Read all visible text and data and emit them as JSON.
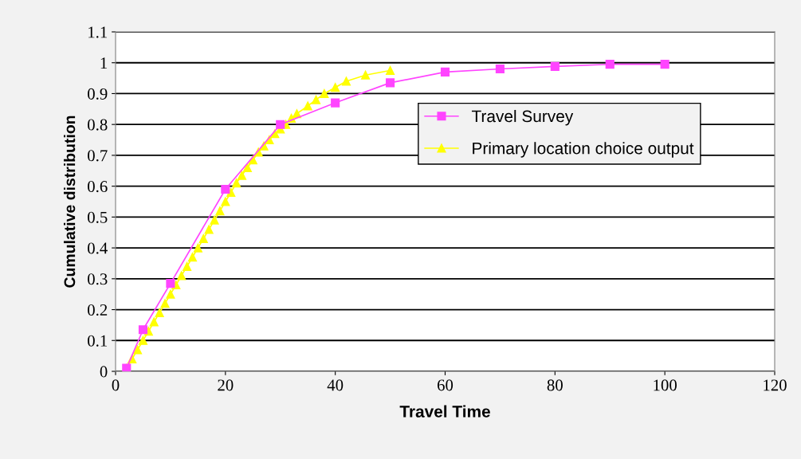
{
  "chart_data": {
    "type": "line",
    "xlabel": "Travel Time",
    "ylabel": "Cumulative distribution",
    "xlim": [
      0,
      120
    ],
    "xticks": [
      0,
      20,
      40,
      60,
      80,
      100,
      120
    ],
    "ylim": [
      0,
      1.1
    ],
    "yticks": [
      0,
      0.1,
      0.2,
      0.3,
      0.4,
      0.5,
      0.6,
      0.7,
      0.8,
      0.9,
      1,
      1.1
    ],
    "grid": "y",
    "legend": "right",
    "series": [
      {
        "name": "Travel Survey",
        "color": "#ff44ff",
        "marker": "square",
        "x": [
          2,
          5,
          10,
          20,
          30,
          40,
          50,
          60,
          70,
          80,
          90,
          100
        ],
        "values": [
          0.01,
          0.135,
          0.285,
          0.59,
          0.8,
          0.87,
          0.935,
          0.97,
          0.98,
          0.988,
          0.995,
          0.995
        ]
      },
      {
        "name": "Primary location choice output",
        "color": "#ffff00",
        "marker": "triangle",
        "x": [
          2,
          3,
          4,
          5,
          6,
          7,
          8,
          9,
          10,
          11,
          12,
          13,
          14,
          15,
          16,
          17,
          18,
          19,
          20,
          21,
          22,
          23,
          24,
          25,
          26,
          27,
          28,
          29,
          30,
          31,
          32,
          33,
          35,
          36.5,
          38,
          40,
          42,
          45.5,
          50
        ],
        "values": [
          0.01,
          0.04,
          0.07,
          0.1,
          0.13,
          0.16,
          0.19,
          0.22,
          0.25,
          0.28,
          0.31,
          0.34,
          0.37,
          0.4,
          0.43,
          0.46,
          0.49,
          0.52,
          0.55,
          0.58,
          0.61,
          0.635,
          0.66,
          0.685,
          0.71,
          0.73,
          0.75,
          0.77,
          0.785,
          0.8,
          0.82,
          0.835,
          0.86,
          0.88,
          0.9,
          0.92,
          0.94,
          0.96,
          0.975
        ]
      }
    ]
  }
}
